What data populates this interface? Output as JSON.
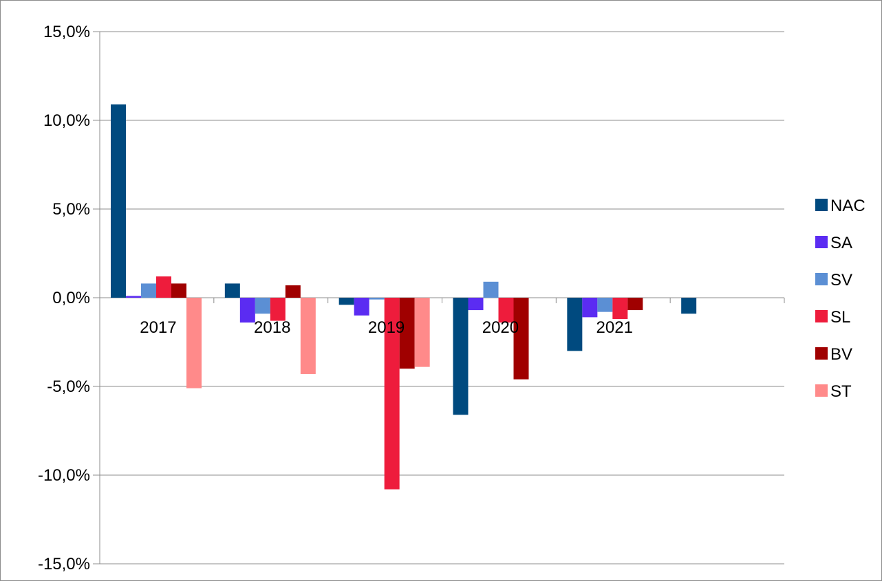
{
  "chart_data": {
    "type": "bar",
    "title": "",
    "xlabel": "",
    "ylabel": "",
    "categories": [
      "2017",
      "2018",
      "2019",
      "2020",
      "2021",
      ""
    ],
    "series": [
      {
        "name": "NAC",
        "color": "#004a7f",
        "values": [
          10.9,
          0.8,
          -0.4,
          -6.6,
          -3.0,
          -0.9
        ]
      },
      {
        "name": "SA",
        "color": "#5b2cf2",
        "values": [
          0.1,
          -1.4,
          -1.0,
          -0.7,
          -1.1,
          null
        ]
      },
      {
        "name": "SV",
        "color": "#5b8fd4",
        "values": [
          0.8,
          -0.9,
          -0.1,
          0.9,
          -0.8,
          null
        ]
      },
      {
        "name": "SL",
        "color": "#ee1c3c",
        "values": [
          1.2,
          -1.3,
          -10.8,
          -1.4,
          -1.2,
          null
        ]
      },
      {
        "name": "BV",
        "color": "#a00000",
        "values": [
          0.8,
          0.7,
          -4.0,
          -4.6,
          -0.7,
          null
        ]
      },
      {
        "name": "ST",
        "color": "#ff8a8a",
        "values": [
          -5.1,
          -4.3,
          -3.9,
          null,
          null,
          null
        ]
      }
    ],
    "ylim": [
      -15,
      15
    ],
    "yticks": [
      15,
      10,
      5,
      0,
      -5,
      -10,
      -15
    ],
    "ytick_labels": [
      "15,0%",
      "10,0%",
      "5,0%",
      "0,0%",
      "-5,0%",
      "-10,0%",
      "-15,0%"
    ],
    "grid": true,
    "legend_position": "right"
  }
}
